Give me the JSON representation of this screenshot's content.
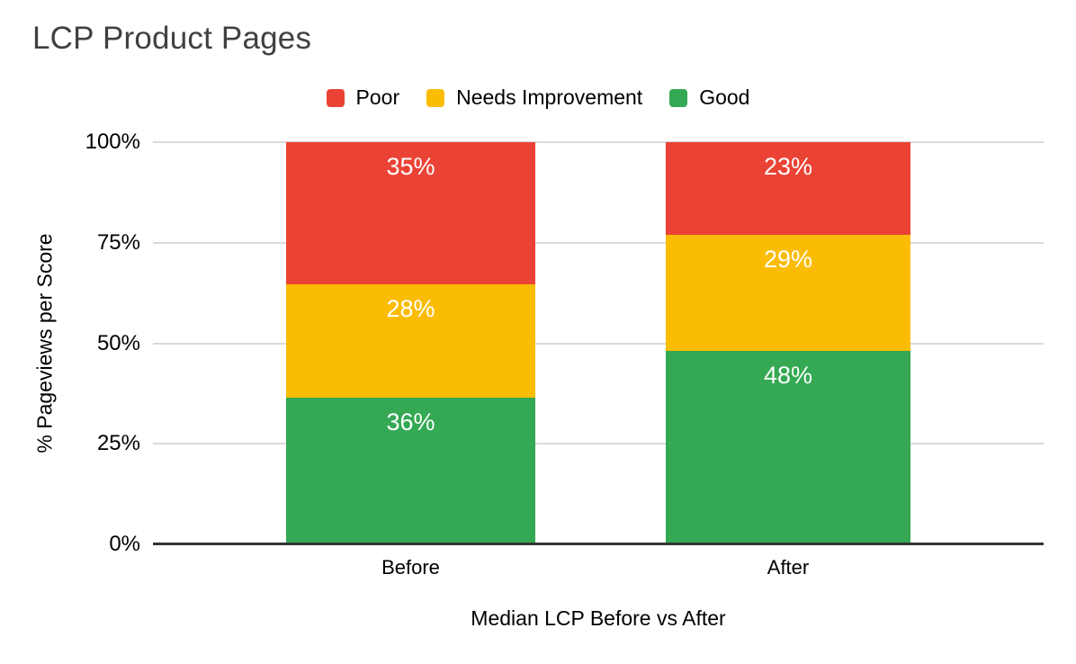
{
  "chart_data": {
    "type": "bar",
    "variant": "stacked-100",
    "title": "LCP Product Pages",
    "xlabel": "Median LCP Before vs After",
    "ylabel": "% Pageviews per Score",
    "categories": [
      "Before",
      "After"
    ],
    "series": [
      {
        "name": "Good",
        "color": "#34A853",
        "values": [
          36,
          48
        ]
      },
      {
        "name": "Needs Improvement",
        "color": "#FBBC04",
        "values": [
          28,
          29
        ]
      },
      {
        "name": "Poor",
        "color": "#EA4335",
        "values": [
          35,
          23
        ]
      }
    ],
    "legend_order": [
      "Poor",
      "Needs Improvement",
      "Good"
    ],
    "legend_position": "top",
    "y_ticks": [
      "0%",
      "25%",
      "50%",
      "75%",
      "100%"
    ],
    "ylim": [
      0,
      100
    ],
    "grid": true,
    "data_label_format": "{v}%",
    "data_label_color": "#ffffff",
    "colors": {
      "title": "#404040",
      "axis_text": "#000000",
      "gridline": "#dadada",
      "axis_line": "#333333"
    }
  }
}
